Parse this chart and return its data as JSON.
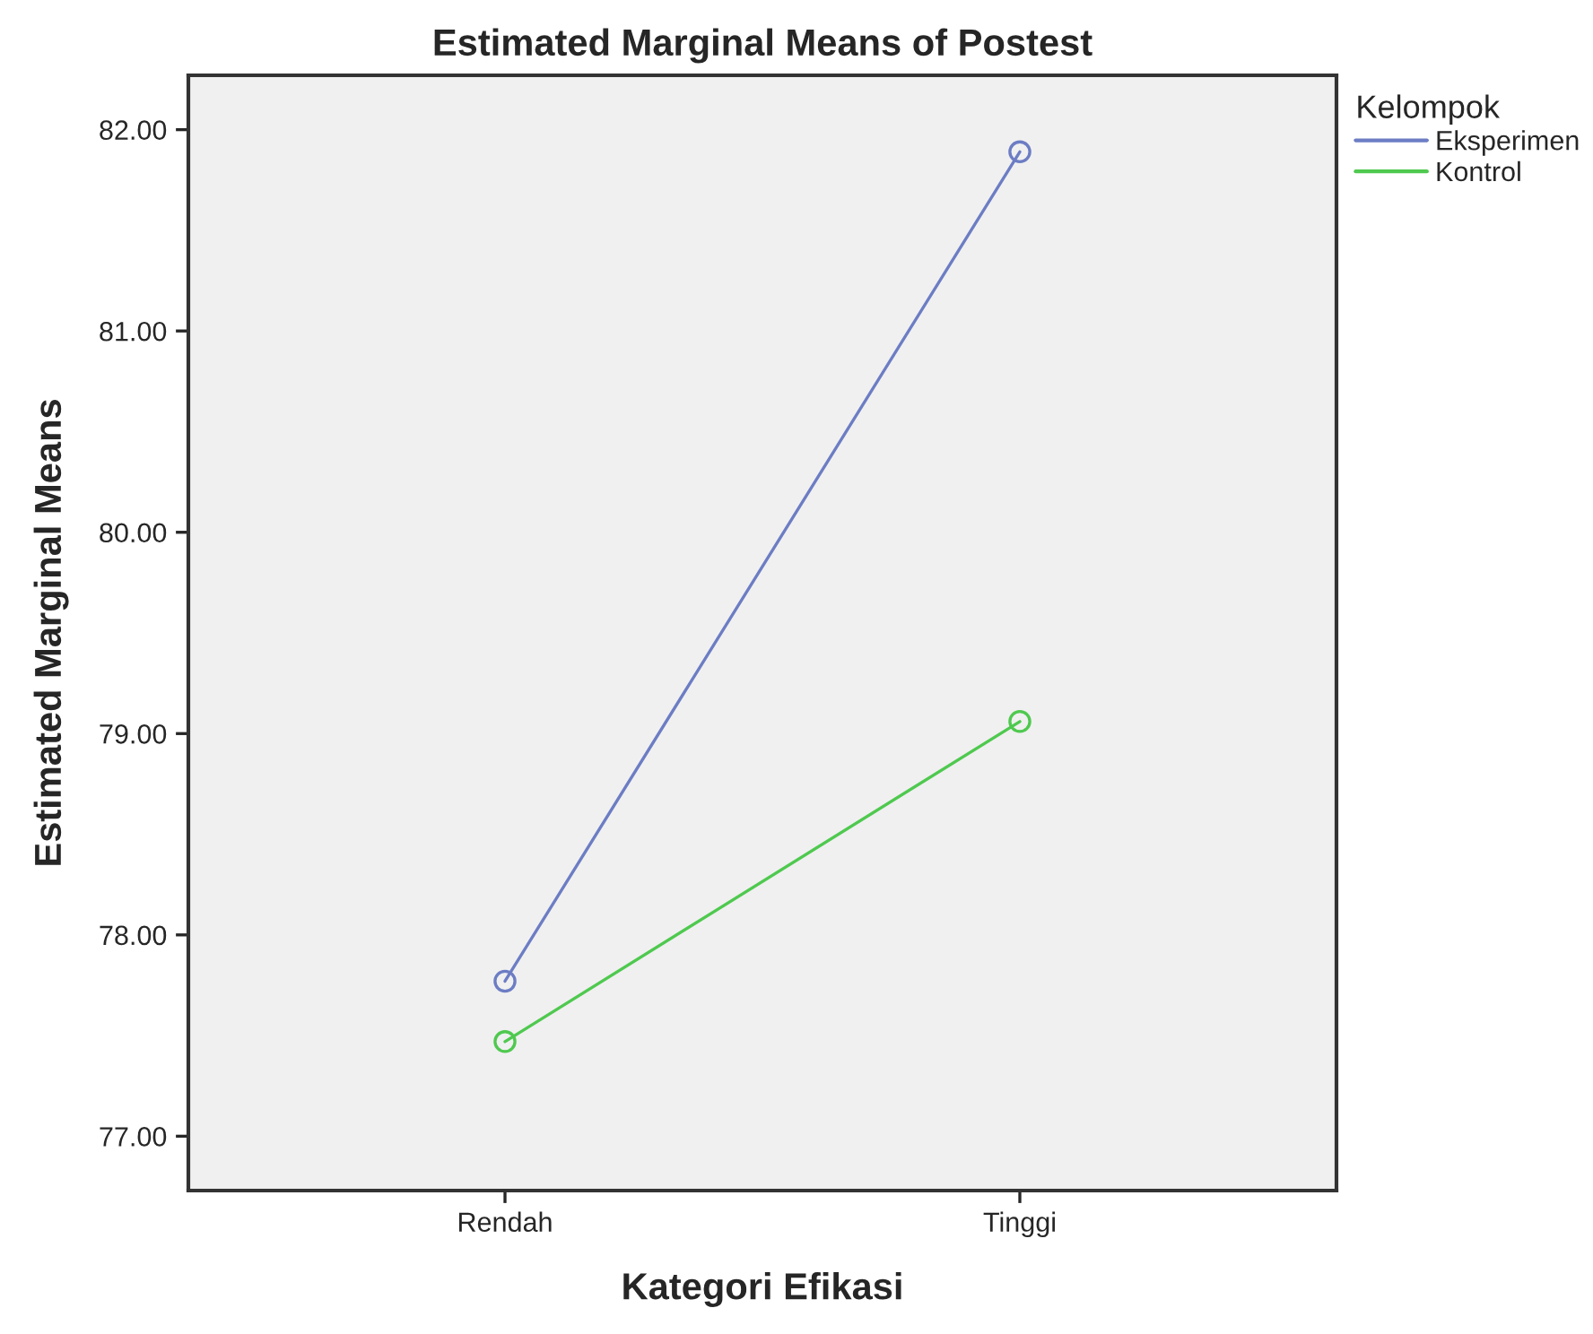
{
  "chart_data": {
    "type": "line",
    "title": "Estimated Marginal Means of Postest",
    "xlabel": "Kategori Efikasi",
    "ylabel": "Estimated Marginal Means",
    "legend_title": "Kelompok",
    "categories": [
      "Rendah",
      "Tinggi"
    ],
    "series": [
      {
        "name": "Eksperimen",
        "color": "#6c7dc4",
        "values": [
          77.77,
          81.89
        ]
      },
      {
        "name": "Kontrol",
        "color": "#4fc94f",
        "values": [
          77.47,
          79.06
        ]
      }
    ],
    "ylim": [
      76.73,
      82.27
    ],
    "yticks": [
      {
        "value": 77,
        "label": "77.00"
      },
      {
        "value": 78,
        "label": "78.00"
      },
      {
        "value": 79,
        "label": "79.00"
      },
      {
        "value": 80,
        "label": "80.00"
      },
      {
        "value": 81,
        "label": "81.00"
      },
      {
        "value": 82,
        "label": "82.00"
      }
    ],
    "grid": false,
    "legend": "top right",
    "marker": "circle",
    "line_style": "solid"
  }
}
